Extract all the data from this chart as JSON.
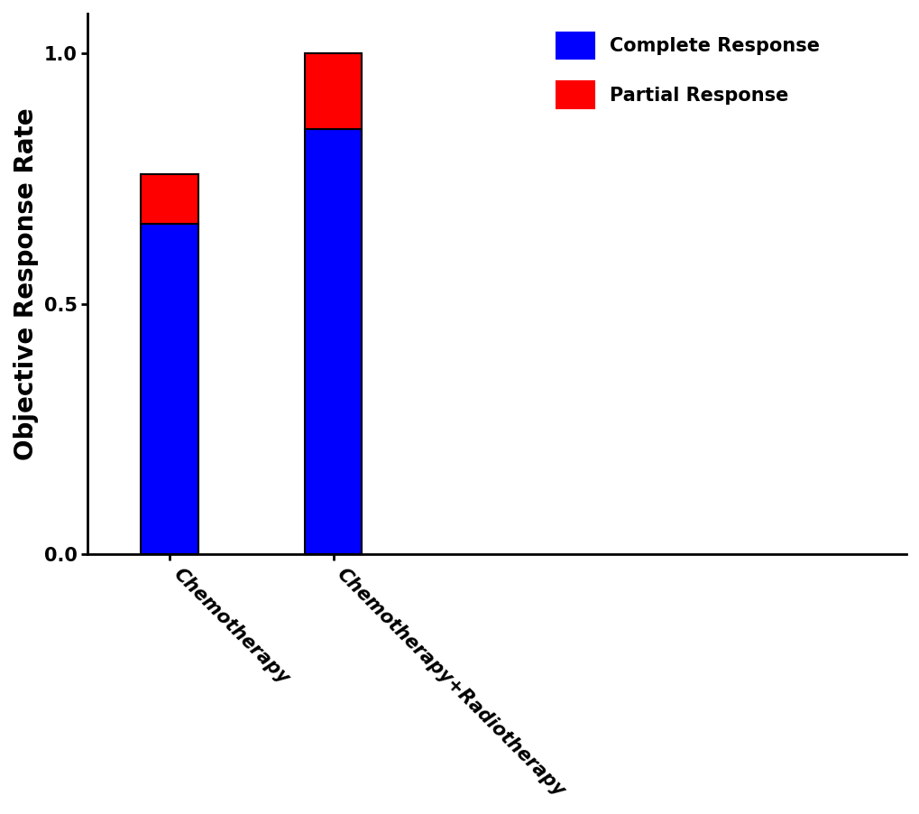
{
  "categories": [
    "Chemotherapy",
    "Chemotherapy+Radiotherapy"
  ],
  "complete_response": [
    0.66,
    0.85
  ],
  "partial_response": [
    0.1,
    0.15
  ],
  "complete_color": "#0000FF",
  "partial_color": "#FF0000",
  "ylabel": "Objective Response Rate",
  "ylim": [
    0.0,
    1.08
  ],
  "yticks": [
    0.0,
    0.5,
    1.0
  ],
  "legend_labels": [
    "Complete Response",
    "Partial Response"
  ],
  "bar_width": 0.35,
  "bar_edgecolor": "#000000",
  "bar_linewidth": 1.5,
  "legend_fontsize": 15,
  "ylabel_fontsize": 20,
  "tick_fontsize": 15,
  "tick_label_fontweight": "bold"
}
